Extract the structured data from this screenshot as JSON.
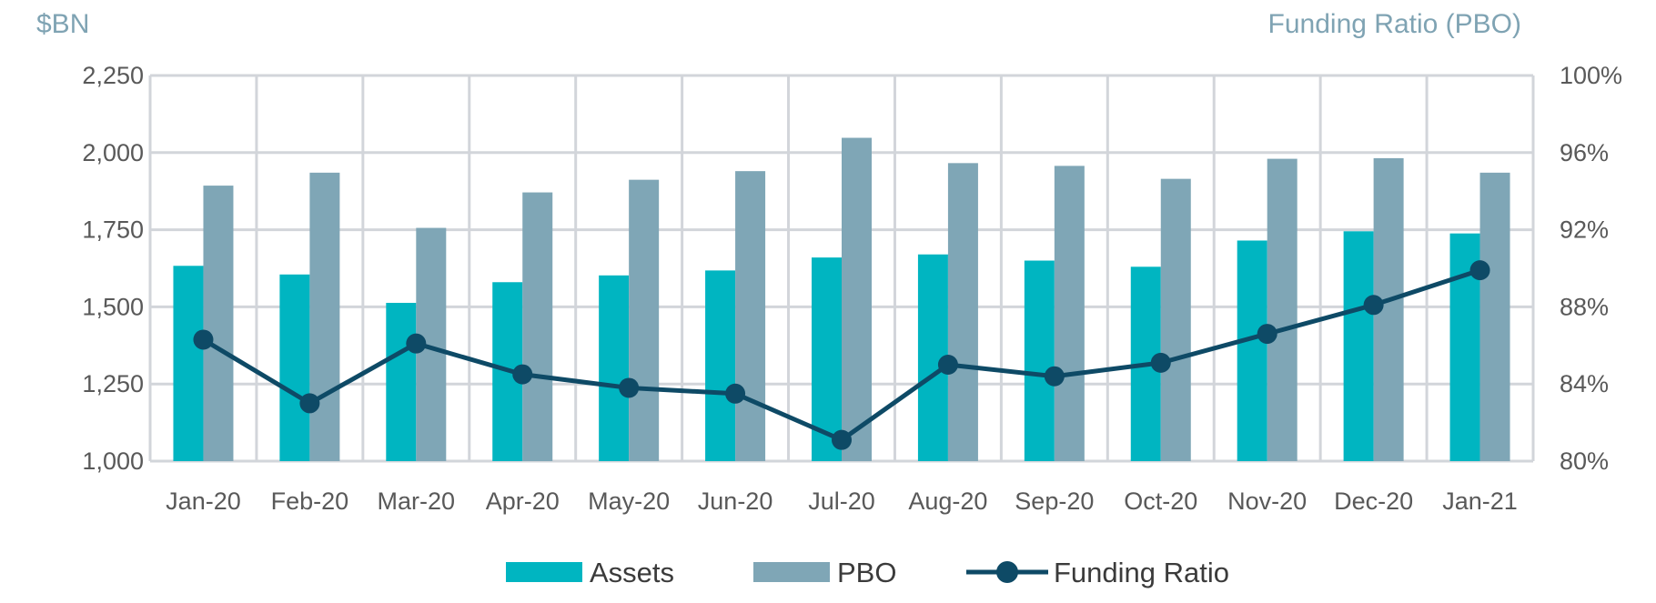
{
  "chart_data": {
    "type": "bar",
    "title": "",
    "ylabel_left": "$BN",
    "ylabel_right": "Funding Ratio (PBO)",
    "categories": [
      "Jan-20",
      "Feb-20",
      "Mar-20",
      "Apr-20",
      "May-20",
      "Jun-20",
      "Jul-20",
      "Aug-20",
      "Sep-20",
      "Oct-20",
      "Nov-20",
      "Dec-20",
      "Jan-21"
    ],
    "ylim_left": [
      1000,
      2250
    ],
    "yticks_left": [
      "1,000",
      "1,250",
      "1,500",
      "1,750",
      "2,000",
      "2,250"
    ],
    "ylim_right": [
      80,
      100
    ],
    "yticks_right": [
      "80%",
      "84%",
      "88%",
      "92%",
      "96%",
      "100%"
    ],
    "grid": true,
    "legend_position": "bottom",
    "series": [
      {
        "name": "Assets",
        "type": "bar",
        "axis": "left",
        "color": "#00b5c1",
        "values": [
          1633,
          1605,
          1513,
          1580,
          1602,
          1618,
          1660,
          1670,
          1650,
          1630,
          1715,
          1745,
          1738
        ]
      },
      {
        "name": "PBO",
        "type": "bar",
        "axis": "left",
        "color": "#7fa6b6",
        "values": [
          1893,
          1935,
          1756,
          1871,
          1912,
          1940,
          2048,
          1966,
          1957,
          1915,
          1980,
          1982,
          1935
        ]
      },
      {
        "name": "Funding Ratio",
        "type": "line",
        "axis": "right",
        "color": "#0e4a66",
        "values": [
          86.3,
          83.0,
          86.1,
          84.5,
          83.8,
          83.5,
          81.1,
          85.0,
          84.4,
          85.1,
          86.6,
          88.1,
          89.9
        ]
      }
    ]
  }
}
